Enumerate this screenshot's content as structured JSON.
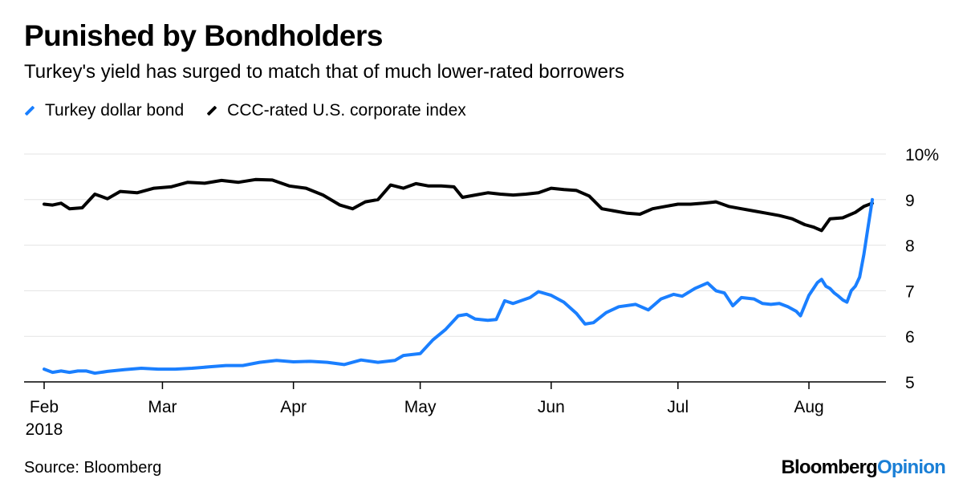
{
  "title": "Punished by Bondholders",
  "subtitle": "Turkey's yield has surged to match that of much lower-rated borrowers",
  "source": "Source: Bloomberg",
  "brand": {
    "part1": "Bloomberg",
    "part2": "Opinion"
  },
  "chart_data": {
    "type": "line",
    "title": "Punished by Bondholders",
    "subtitle": "Turkey's yield has surged to match that of much lower-rated borrowers",
    "xlabel": "",
    "ylabel": "",
    "ylim": [
      5,
      10
    ],
    "y_ticks": [
      5,
      6,
      7,
      8,
      9,
      10
    ],
    "y_tick_labels": [
      "5",
      "6",
      "7",
      "8",
      "9",
      "10%"
    ],
    "x_range": [
      "2018-02-01",
      "2018-08-16"
    ],
    "x_ticks": [
      {
        "date": "2018-02-01",
        "label": "Feb",
        "sublabel": "2018"
      },
      {
        "date": "2018-03-01",
        "label": "Mar"
      },
      {
        "date": "2018-04-01",
        "label": "Apr"
      },
      {
        "date": "2018-05-01",
        "label": "May"
      },
      {
        "date": "2018-06-01",
        "label": "Jun"
      },
      {
        "date": "2018-07-01",
        "label": "Jul"
      },
      {
        "date": "2018-08-01",
        "label": "Aug"
      }
    ],
    "grid": "horizontal",
    "legend_position": "top-left",
    "series": [
      {
        "name": "Turkey dollar bond",
        "color": "#1a7fff",
        "points": [
          [
            "2018-02-01",
            5.28
          ],
          [
            "2018-02-03",
            5.21
          ],
          [
            "2018-02-05",
            5.24
          ],
          [
            "2018-02-07",
            5.21
          ],
          [
            "2018-02-09",
            5.24
          ],
          [
            "2018-02-11",
            5.24
          ],
          [
            "2018-02-13",
            5.19
          ],
          [
            "2018-02-16",
            5.23
          ],
          [
            "2018-02-20",
            5.27
          ],
          [
            "2018-02-24",
            5.3
          ],
          [
            "2018-02-28",
            5.28
          ],
          [
            "2018-03-04",
            5.28
          ],
          [
            "2018-03-08",
            5.3
          ],
          [
            "2018-03-12",
            5.33
          ],
          [
            "2018-03-16",
            5.36
          ],
          [
            "2018-03-20",
            5.36
          ],
          [
            "2018-03-24",
            5.43
          ],
          [
            "2018-03-28",
            5.47
          ],
          [
            "2018-04-01",
            5.44
          ],
          [
            "2018-04-05",
            5.45
          ],
          [
            "2018-04-09",
            5.43
          ],
          [
            "2018-04-13",
            5.38
          ],
          [
            "2018-04-17",
            5.48
          ],
          [
            "2018-04-21",
            5.43
          ],
          [
            "2018-04-25",
            5.47
          ],
          [
            "2018-04-27",
            5.58
          ],
          [
            "2018-05-01",
            5.62
          ],
          [
            "2018-05-04",
            5.92
          ],
          [
            "2018-05-07",
            6.15
          ],
          [
            "2018-05-10",
            6.45
          ],
          [
            "2018-05-12",
            6.48
          ],
          [
            "2018-05-14",
            6.38
          ],
          [
            "2018-05-17",
            6.35
          ],
          [
            "2018-05-19",
            6.37
          ],
          [
            "2018-05-21",
            6.78
          ],
          [
            "2018-05-23",
            6.72
          ],
          [
            "2018-05-27",
            6.85
          ],
          [
            "2018-05-29",
            6.98
          ],
          [
            "2018-06-01",
            6.9
          ],
          [
            "2018-06-04",
            6.75
          ],
          [
            "2018-06-07",
            6.5
          ],
          [
            "2018-06-09",
            6.27
          ],
          [
            "2018-06-11",
            6.3
          ],
          [
            "2018-06-14",
            6.52
          ],
          [
            "2018-06-17",
            6.65
          ],
          [
            "2018-06-21",
            6.7
          ],
          [
            "2018-06-24",
            6.58
          ],
          [
            "2018-06-27",
            6.82
          ],
          [
            "2018-06-30",
            6.92
          ],
          [
            "2018-07-02",
            6.88
          ],
          [
            "2018-07-05",
            7.05
          ],
          [
            "2018-07-08",
            7.17
          ],
          [
            "2018-07-10",
            7.0
          ],
          [
            "2018-07-12",
            6.95
          ],
          [
            "2018-07-14",
            6.67
          ],
          [
            "2018-07-16",
            6.85
          ],
          [
            "2018-07-19",
            6.82
          ],
          [
            "2018-07-21",
            6.72
          ],
          [
            "2018-07-23",
            6.7
          ],
          [
            "2018-07-25",
            6.72
          ],
          [
            "2018-07-27",
            6.65
          ],
          [
            "2018-07-29",
            6.55
          ],
          [
            "2018-07-30",
            6.45
          ],
          [
            "2018-08-01",
            6.9
          ],
          [
            "2018-08-03",
            7.18
          ],
          [
            "2018-08-04",
            7.25
          ],
          [
            "2018-08-05",
            7.1
          ],
          [
            "2018-08-06",
            7.05
          ],
          [
            "2018-08-07",
            6.95
          ],
          [
            "2018-08-08",
            6.88
          ],
          [
            "2018-08-09",
            6.8
          ],
          [
            "2018-08-10",
            6.75
          ],
          [
            "2018-08-11",
            7.0
          ],
          [
            "2018-08-12",
            7.1
          ],
          [
            "2018-08-13",
            7.3
          ],
          [
            "2018-08-14",
            7.8
          ],
          [
            "2018-08-15",
            8.4
          ],
          [
            "2018-08-16",
            9.0
          ]
        ]
      },
      {
        "name": "CCC-rated U.S. corporate index",
        "color": "#000000",
        "points": [
          [
            "2018-02-01",
            8.9
          ],
          [
            "2018-02-03",
            8.88
          ],
          [
            "2018-02-05",
            8.92
          ],
          [
            "2018-02-07",
            8.8
          ],
          [
            "2018-02-10",
            8.82
          ],
          [
            "2018-02-13",
            9.12
          ],
          [
            "2018-02-16",
            9.02
          ],
          [
            "2018-02-19",
            9.18
          ],
          [
            "2018-02-23",
            9.15
          ],
          [
            "2018-02-27",
            9.25
          ],
          [
            "2018-03-03",
            9.28
          ],
          [
            "2018-03-07",
            9.38
          ],
          [
            "2018-03-11",
            9.36
          ],
          [
            "2018-03-15",
            9.42
          ],
          [
            "2018-03-19",
            9.38
          ],
          [
            "2018-03-23",
            9.44
          ],
          [
            "2018-03-27",
            9.43
          ],
          [
            "2018-03-31",
            9.3
          ],
          [
            "2018-04-04",
            9.25
          ],
          [
            "2018-04-08",
            9.1
          ],
          [
            "2018-04-12",
            8.88
          ],
          [
            "2018-04-15",
            8.8
          ],
          [
            "2018-04-18",
            8.95
          ],
          [
            "2018-04-21",
            9.0
          ],
          [
            "2018-04-24",
            9.32
          ],
          [
            "2018-04-27",
            9.25
          ],
          [
            "2018-04-30",
            9.35
          ],
          [
            "2018-05-03",
            9.3
          ],
          [
            "2018-05-06",
            9.3
          ],
          [
            "2018-05-09",
            9.28
          ],
          [
            "2018-05-11",
            9.05
          ],
          [
            "2018-05-14",
            9.1
          ],
          [
            "2018-05-17",
            9.15
          ],
          [
            "2018-05-20",
            9.12
          ],
          [
            "2018-05-23",
            9.1
          ],
          [
            "2018-05-26",
            9.12
          ],
          [
            "2018-05-29",
            9.15
          ],
          [
            "2018-06-01",
            9.25
          ],
          [
            "2018-06-04",
            9.22
          ],
          [
            "2018-06-07",
            9.2
          ],
          [
            "2018-06-10",
            9.08
          ],
          [
            "2018-06-13",
            8.8
          ],
          [
            "2018-06-16",
            8.75
          ],
          [
            "2018-06-19",
            8.7
          ],
          [
            "2018-06-22",
            8.68
          ],
          [
            "2018-06-25",
            8.8
          ],
          [
            "2018-06-28",
            8.85
          ],
          [
            "2018-07-01",
            8.9
          ],
          [
            "2018-07-04",
            8.9
          ],
          [
            "2018-07-07",
            8.92
          ],
          [
            "2018-07-10",
            8.95
          ],
          [
            "2018-07-13",
            8.85
          ],
          [
            "2018-07-16",
            8.8
          ],
          [
            "2018-07-19",
            8.75
          ],
          [
            "2018-07-22",
            8.7
          ],
          [
            "2018-07-25",
            8.65
          ],
          [
            "2018-07-28",
            8.58
          ],
          [
            "2018-07-31",
            8.45
          ],
          [
            "2018-08-02",
            8.4
          ],
          [
            "2018-08-04",
            8.32
          ],
          [
            "2018-08-06",
            8.58
          ],
          [
            "2018-08-09",
            8.6
          ],
          [
            "2018-08-12",
            8.72
          ],
          [
            "2018-08-14",
            8.85
          ],
          [
            "2018-08-16",
            8.92
          ]
        ]
      }
    ]
  }
}
